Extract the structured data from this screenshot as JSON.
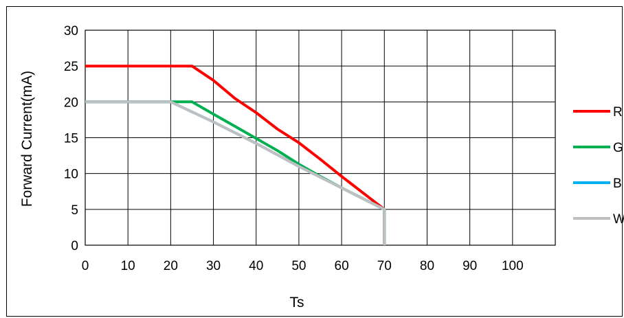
{
  "chart_data": {
    "type": "line",
    "title": "",
    "xlabel": "Ts",
    "ylabel": "Forward Current(mA)",
    "xlim": [
      0,
      110
    ],
    "ylim": [
      0,
      30
    ],
    "xticks": [
      0,
      10,
      20,
      30,
      40,
      50,
      60,
      70,
      80,
      90,
      100
    ],
    "yticks": [
      0,
      5,
      10,
      15,
      20,
      25,
      30
    ],
    "grid": true,
    "legend_position": "right",
    "series": [
      {
        "name": "R",
        "color": "#ff0000",
        "x": [
          0,
          25,
          30,
          35,
          40,
          45,
          50,
          55,
          60,
          65,
          70,
          70
        ],
        "y": [
          25,
          25,
          23,
          20.5,
          18.5,
          16.2,
          14.3,
          12,
          9.6,
          7.3,
          5,
          0
        ]
      },
      {
        "name": "G",
        "color": "#00b050",
        "x": [
          0,
          20,
          25,
          30,
          35,
          40,
          45,
          50,
          55,
          60,
          65,
          70,
          70
        ],
        "y": [
          20,
          20,
          20,
          18.3,
          16.6,
          14.9,
          13.2,
          11.3,
          9.6,
          8,
          6.5,
          5,
          0
        ]
      },
      {
        "name": "B",
        "color": "#00b0f0",
        "x": [
          0,
          20,
          30,
          40,
          50,
          60,
          70,
          70
        ],
        "y": [
          20,
          20,
          17.2,
          14.2,
          11,
          8,
          5,
          0
        ]
      },
      {
        "name": "W",
        "color": "#bfbfbf",
        "x": [
          0,
          20,
          30,
          40,
          50,
          60,
          70,
          70
        ],
        "y": [
          20,
          20,
          17.2,
          14.2,
          11,
          8,
          5,
          0
        ]
      }
    ]
  }
}
